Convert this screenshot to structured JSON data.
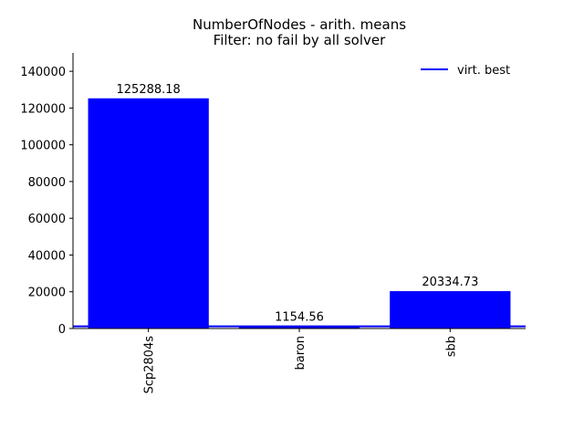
{
  "chart_data": {
    "type": "bar",
    "title": "NumberOfNodes - arith. means",
    "subtitle": "Filter: no fail by all solver",
    "xlabel": "",
    "ylabel": "",
    "categories": [
      "Scp2804s",
      "baron",
      "sbb"
    ],
    "values": [
      125288.18,
      1154.56,
      20334.73
    ],
    "value_labels": [
      "125288.18",
      "1154.56",
      "20334.73"
    ],
    "ylim": [
      0,
      150000
    ],
    "yticks": [
      0,
      20000,
      40000,
      60000,
      80000,
      100000,
      120000,
      140000
    ],
    "ytick_labels": [
      "0",
      "20000",
      "40000",
      "60000",
      "80000",
      "100000",
      "120000",
      "140000"
    ],
    "reference_line": {
      "name": "virt. best",
      "value": 1154.56
    },
    "legend": {
      "position": "top-right",
      "entries": [
        "virt. best"
      ]
    },
    "grid": false,
    "colors": {
      "bars": "#0000ff",
      "line": "#0000ff",
      "axes": "#000000"
    }
  }
}
